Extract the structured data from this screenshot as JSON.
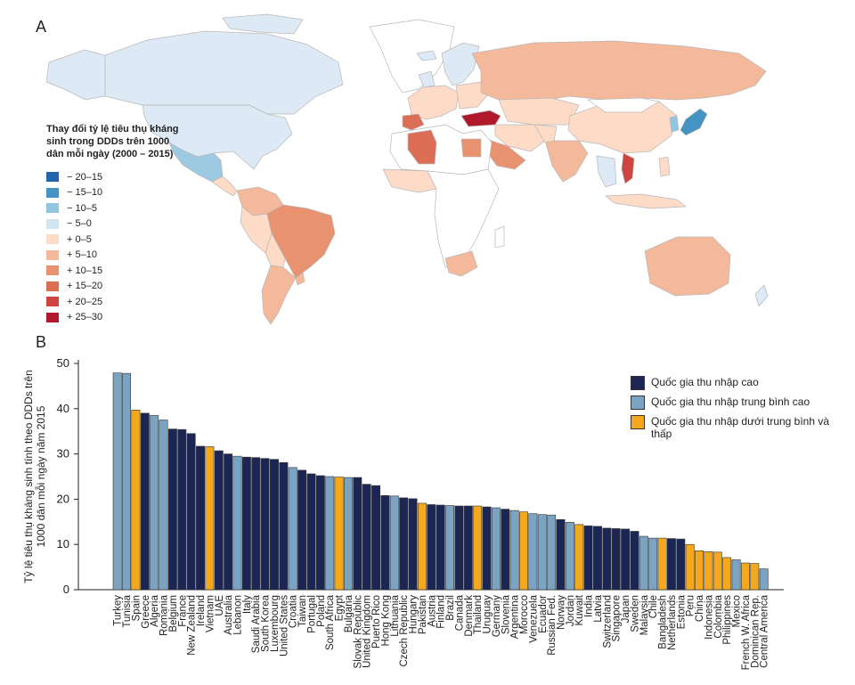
{
  "panel_a": {
    "letter": "A",
    "legend_title": "Thay đổi tỷ lệ tiêu thụ kháng sinh trong DDDs trên 1000 dân mỗi ngày (2000 – 2015)",
    "legend": [
      {
        "label": "− 20–15",
        "color": "#2166ac"
      },
      {
        "label": "− 15–10",
        "color": "#4393c3"
      },
      {
        "label": "− 10–5",
        "color": "#92c5de"
      },
      {
        "label": "− 5–0",
        "color": "#d1e5f0"
      },
      {
        "label": "+ 0–5",
        "color": "#fddbc7"
      },
      {
        "label": "+ 5–10",
        "color": "#f4b99b"
      },
      {
        "label": "+ 10–15",
        "color": "#e8926f"
      },
      {
        "label": "+ 15–20",
        "color": "#dc6e56"
      },
      {
        "label": "+ 20–25",
        "color": "#cd4440"
      },
      {
        "label": "+ 25–30",
        "color": "#b2182b"
      }
    ]
  },
  "panel_b": {
    "letter": "B",
    "legend": [
      {
        "label": "Quốc gia thu nhập cao",
        "color": "#1c2654"
      },
      {
        "label": "Quốc gia thu nhập trung bình cao",
        "color": "#7ba3c2"
      },
      {
        "label": "Quốc gia thu nhập dưới trung bình và thấp",
        "color": "#f4a81d"
      }
    ]
  },
  "chart_data": {
    "type": "bar",
    "title": "",
    "xlabel": "",
    "ylabel": "Tỷ lệ tiêu thụ kháng sinh tính theo DDDs trên 1000 dân mỗi ngày năm 2015",
    "ylim": [
      0,
      50
    ],
    "yticks": [
      0,
      10,
      20,
      30,
      40,
      50
    ],
    "grid": false,
    "legend_position": "right",
    "categories": [
      "Turkey",
      "Tunisia",
      "Spain",
      "Greece",
      "Algeria",
      "Romania",
      "Belgium",
      "France",
      "New Zealand",
      "Ireland",
      "Vietnam",
      "UAE",
      "Australia",
      "Lebanon",
      "Italy",
      "Saudi Arabia",
      "South Korea",
      "Luxembourg",
      "United States",
      "Croatia",
      "Taiwan",
      "Portugal",
      "Poland",
      "South Africa",
      "Egypt",
      "Bulgaria",
      "Slovak Republic",
      "United Kingdom",
      "Puerto Rico",
      "Hong Kong",
      "Lithuania",
      "Czech Republic",
      "Hungary",
      "Pakistan",
      "Austria",
      "Finland",
      "Brazil",
      "Canada",
      "Denmark",
      "Thailand",
      "Uruguay",
      "Germany",
      "Slovenia",
      "Argentina",
      "Morocco",
      "Venezuela",
      "Ecuador",
      "Russian Fed.",
      "Norway",
      "Jordan",
      "Kuwait",
      "India",
      "Latvia",
      "Switzerland",
      "Singapore",
      "Japan",
      "Sweden",
      "Malaysia",
      "Chile",
      "Bangladesh",
      "Netherlands",
      "Estonia",
      "Peru",
      "China",
      "Indonesia",
      "Colombia",
      "Philippines",
      "Mexico",
      "French W. Africa",
      "Dominican Rep.",
      "Central America"
    ],
    "income_group": [
      "upper-middle",
      "upper-middle",
      "lower-middle-low",
      "high",
      "upper-middle",
      "upper-middle",
      "high",
      "high",
      "high",
      "high",
      "lower-middle-low",
      "high",
      "high",
      "upper-middle",
      "high",
      "high",
      "high",
      "high",
      "high",
      "upper-middle",
      "high",
      "high",
      "high",
      "upper-middle",
      "lower-middle-low",
      "upper-middle",
      "high",
      "high",
      "high",
      "high",
      "upper-middle",
      "high",
      "high",
      "lower-middle-low",
      "high",
      "high",
      "upper-middle",
      "high",
      "high",
      "lower-middle-low",
      "high",
      "upper-middle",
      "high",
      "upper-middle",
      "lower-middle-low",
      "upper-middle",
      "upper-middle",
      "upper-middle",
      "high",
      "upper-middle",
      "lower-middle-low",
      "high",
      "high",
      "high",
      "high",
      "high",
      "high",
      "upper-middle",
      "upper-middle",
      "lower-middle-low",
      "high",
      "high",
      "lower-middle-low",
      "lower-middle-low",
      "lower-middle-low",
      "lower-middle-low",
      "lower-middle-low",
      "upper-middle",
      "lower-middle-low",
      "lower-middle-low",
      "upper-middle"
    ],
    "values": [
      47.9,
      47.8,
      39.7,
      39.0,
      38.5,
      37.5,
      35.5,
      35.4,
      34.5,
      31.7,
      31.6,
      30.7,
      30.0,
      29.5,
      29.3,
      29.2,
      29.0,
      28.8,
      28.1,
      27.0,
      26.4,
      25.6,
      25.2,
      25.0,
      24.9,
      24.8,
      24.8,
      23.3,
      23.0,
      20.8,
      20.7,
      20.3,
      20.1,
      19.1,
      18.8,
      18.7,
      18.6,
      18.5,
      18.5,
      18.5,
      18.3,
      18.1,
      17.8,
      17.5,
      17.2,
      16.8,
      16.6,
      16.5,
      15.5,
      14.9,
      14.4,
      14.1,
      14.0,
      13.6,
      13.5,
      13.4,
      12.9,
      11.8,
      11.4,
      11.4,
      11.3,
      11.2,
      10.0,
      8.6,
      8.4,
      8.3,
      7.1,
      6.6,
      5.9,
      5.8,
      4.6
    ]
  }
}
